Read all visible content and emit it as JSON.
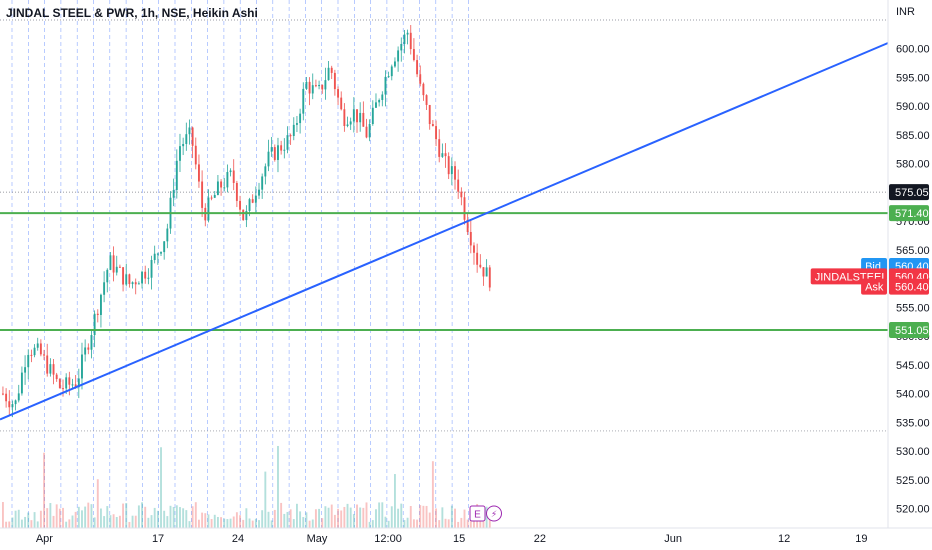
{
  "chart_data": {
    "type": "candlestick",
    "title": "JINDAL STEEL & PWR, 1h, NSE, Heikin Ashi",
    "currency": "INR",
    "ylim": [
      518,
      605
    ],
    "y_ticks": [
      520,
      525,
      530,
      535,
      540,
      545,
      550,
      555,
      560,
      565,
      570,
      575,
      580,
      585,
      590,
      595,
      600
    ],
    "x_ticks": [
      {
        "label": "Apr",
        "pos": 0.05
      },
      {
        "label": "17",
        "pos": 0.178
      },
      {
        "label": "24",
        "pos": 0.268
      },
      {
        "label": "May",
        "pos": 0.357
      },
      {
        "label": "12:00",
        "pos": 0.437
      },
      {
        "label": "15",
        "pos": 0.517
      },
      {
        "label": "22",
        "pos": 0.608
      },
      {
        "label": "Jun",
        "pos": 0.758
      },
      {
        "label": "12",
        "pos": 0.883
      },
      {
        "label": "19",
        "pos": 0.97
      }
    ],
    "candle_count": 155,
    "trend_line": {
      "from_pos": 0.0,
      "to_pos": 1.0,
      "from_price": 535.5,
      "to_price": 601.0,
      "color": "#2962ff"
    },
    "horizontal_levels": [
      {
        "price": 571.4,
        "label": "571.40",
        "color": "#4caf50"
      },
      {
        "price": 551.05,
        "label": "551.05",
        "color": "#4caf50"
      }
    ],
    "dotted_levels": [
      575.05,
      533.5
    ],
    "price_labels": [
      {
        "name": "",
        "value": "575.05",
        "price": 575.05,
        "color": "#131722"
      },
      {
        "name": "Bid",
        "value": "560.40",
        "price": 562.2,
        "color": "#2196f3"
      },
      {
        "name": "JINDALSTEEL",
        "value": "560.40",
        "price": 560.4,
        "color": "#f23645"
      },
      {
        "name": "Ask",
        "value": "560.40",
        "price": 558.6,
        "color": "#f23645"
      }
    ],
    "event_markers": [
      "E",
      "⚡"
    ],
    "colors": {
      "up": "#26a69a",
      "down": "#ef5350",
      "session": "#2962ff"
    }
  }
}
